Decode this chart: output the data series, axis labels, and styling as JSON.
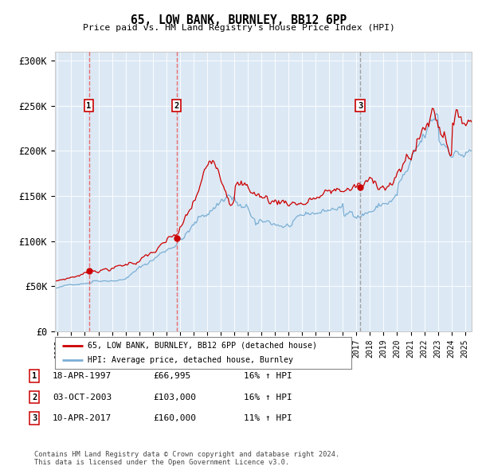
{
  "title": "65, LOW BANK, BURNLEY, BB12 6PP",
  "subtitle": "Price paid vs. HM Land Registry's House Price Index (HPI)",
  "legend_label_red": "65, LOW BANK, BURNLEY, BB12 6PP (detached house)",
  "legend_label_blue": "HPI: Average price, detached house, Burnley",
  "transactions": [
    {
      "num": 1,
      "date": "18-APR-1997",
      "price": 66995,
      "hpi_pct": "16% ↑ HPI"
    },
    {
      "num": 2,
      "date": "03-OCT-2003",
      "price": 103000,
      "hpi_pct": "16% ↑ HPI"
    },
    {
      "num": 3,
      "date": "10-APR-2017",
      "price": 160000,
      "hpi_pct": "11% ↑ HPI"
    }
  ],
  "transaction_years": [
    1997.3,
    2003.75,
    2017.28
  ],
  "transaction_prices": [
    66995,
    103000,
    160000
  ],
  "ylim": [
    0,
    310000
  ],
  "yticks": [
    0,
    50000,
    100000,
    150000,
    200000,
    250000,
    300000
  ],
  "ytick_labels": [
    "£0",
    "£50K",
    "£100K",
    "£150K",
    "£200K",
    "£250K",
    "£300K"
  ],
  "xmin": 1994.8,
  "xmax": 2025.5,
  "red_color": "#cc0000",
  "blue_color": "#7bafd4",
  "dashed_red": "#e86060",
  "dashed_grey": "#999999",
  "bg_color": "#dce9f5",
  "footer": "Contains HM Land Registry data © Crown copyright and database right 2024.\nThis data is licensed under the Open Government Licence v3.0.",
  "num_box_color": "#cc0000"
}
